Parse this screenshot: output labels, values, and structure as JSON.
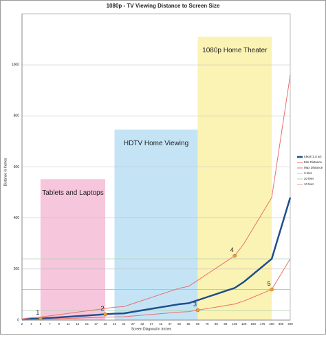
{
  "chart_data": {
    "type": "line",
    "title": "1080p - TV Viewing Distance to Screen Size",
    "x_label": "Screen Diagonal in Inches",
    "y_label": "Distance in Inches",
    "categories": [
      2,
      4,
      5,
      7,
      9,
      11,
      13,
      15,
      17,
      19,
      21,
      22,
      27,
      32,
      37,
      42,
      47,
      52,
      55,
      65,
      75,
      85,
      95,
      105,
      125,
      150,
      175,
      200,
      300,
      400
    ],
    "series": [
      {
        "name": "Ideal (1.5 ar)",
        "color": "#1f4e8c",
        "width": 2.5,
        "values": [
          2.4,
          4.8,
          6,
          8.4,
          10.8,
          13.2,
          15.6,
          18,
          20.4,
          22.8,
          25.2,
          26.4,
          32.4,
          38.4,
          44.4,
          50.4,
          56.4,
          62.4,
          66,
          78,
          90,
          102,
          114,
          126,
          150,
          180,
          210,
          240,
          360,
          480
        ]
      },
      {
        "name": "Min Distance",
        "color": "#e8706a",
        "width": 1,
        "values": [
          1.2,
          2.4,
          3,
          4.2,
          5.4,
          6.6,
          7.8,
          9,
          10.2,
          11.4,
          12.6,
          13.2,
          16.2,
          19.2,
          22.2,
          25.2,
          28.2,
          31.2,
          33,
          39,
          45,
          51,
          57,
          63,
          75,
          90,
          105,
          120,
          180,
          240
        ]
      },
      {
        "name": "Max Distance",
        "color": "#e8706a",
        "width": 1,
        "values": [
          4.8,
          9.6,
          12,
          16.8,
          21.6,
          26.4,
          31.2,
          36,
          40.8,
          45.6,
          50.4,
          52.8,
          64.8,
          76.8,
          88.8,
          100.8,
          112.8,
          124.8,
          132,
          156,
          180,
          204,
          228,
          252,
          300,
          360,
          420,
          480,
          720,
          960
        ]
      }
    ],
    "reference_lines": [
      {
        "name": "3 feet",
        "color": "#b0d0b0",
        "value": 36
      },
      {
        "name": "20 feet",
        "color": "#b0d0b0",
        "value": 240
      },
      {
        "name": "10 feet",
        "color": "#e0a0a0",
        "value": 120
      }
    ],
    "regions": [
      {
        "label": "Tablets and Laptops",
        "color": "#f6c6dc",
        "from": 5,
        "to": 19,
        "top": 552
      },
      {
        "label": "HDTV Home Viewing",
        "color": "#c4e4f6",
        "from": 21,
        "to": 65,
        "top": 746
      },
      {
        "label": "1080p Home Theater",
        "color": "#fbf3b4",
        "from": 65,
        "to": 200,
        "top": 1110
      }
    ],
    "points": [
      {
        "label": "1",
        "category": 5,
        "value": 6
      },
      {
        "label": "2",
        "category": 19,
        "value": 22.8
      },
      {
        "label": "3",
        "category": 65,
        "value": 39
      },
      {
        "label": "4",
        "category": 105,
        "value": 252
      },
      {
        "label": "5",
        "category": 200,
        "value": 120
      }
    ],
    "point_color": "#f0a030",
    "ylim": [
      0,
      1200
    ],
    "yticks": [
      0,
      200,
      400,
      600,
      800,
      1000
    ],
    "grid": true
  }
}
